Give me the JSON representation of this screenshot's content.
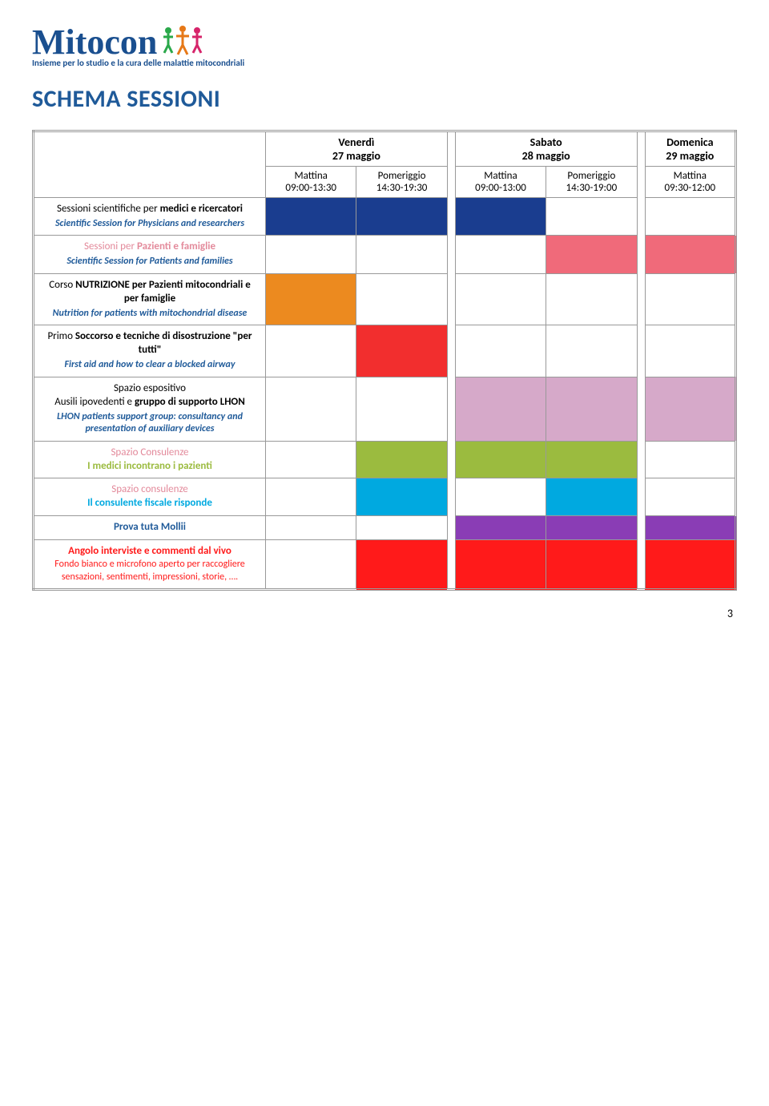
{
  "logo": {
    "brand": "Mitocon",
    "tagline": "Insieme per lo studio e la cura delle malattie mitocondriali"
  },
  "title": "SCHEMA SESSIONI",
  "days": {
    "d1": "Venerdì\n27 maggio",
    "d2": "Sabato\n28 maggio",
    "d3": "Domenica\n29 maggio"
  },
  "time_headers": {
    "d1m": "Mattina\n09:00-13:30",
    "d1p": "Pomeriggio\n14:30-19:30",
    "d2m": "Mattina\n09:00-13:00",
    "d2p": "Pomeriggio\n14:30-19:00",
    "d3m": "Mattina\n09:30-12:00"
  },
  "rows": [
    {
      "label_it_pre": "Sessioni scientifiche per ",
      "label_it_strong": "medici e ricercatori",
      "label_en": "Scientific Session for Physicians and researchers",
      "label_en_color": "#1f5a99",
      "cells": [
        "#1a3d8f",
        "#1a3d8f",
        "#1a3d8f",
        "",
        ""
      ]
    },
    {
      "label_it_pre": "Sessioni per ",
      "label_it_strong": "Pazienti e famiglie",
      "label_it_color": "#e38a9b",
      "label_en": "Scientific Session for Patients and families",
      "label_en_color": "#1f5a99",
      "cells": [
        "",
        "",
        "",
        "#f06a7a",
        "#f06a7a"
      ]
    },
    {
      "label_it_pre": "Corso ",
      "label_it_strong": "NUTRIZIONE per Pazienti mitocondriali e per famiglie",
      "label_en": "Nutrition for patients with mitochondrial disease",
      "label_en_color": "#1f5a99",
      "cells": [
        "#ec8a1f",
        "",
        "",
        "",
        ""
      ]
    },
    {
      "label_it_pre": "Primo ",
      "label_it_strong": "Soccorso e tecniche di disostruzione \"per tutti\"",
      "label_en": "First aid and how to clear a blocked airway",
      "label_en_color": "#1f5a99",
      "cells": [
        "",
        "#f22e2e",
        "",
        "",
        ""
      ]
    },
    {
      "label_it_pre": "Spazio espositivo\n",
      "label_it_pre2": "Ausili ipovedenti e ",
      "label_it_strong": "gruppo di supporto LHON",
      "label_en": "LHON patients support group: consultancy and presentation of auxiliary devices",
      "label_en_color": "#1f5a99",
      "cells": [
        "",
        "",
        "#d6a9c9",
        "#d6a9c9",
        "#d6a9c9"
      ]
    },
    {
      "label_it_pre_colored": "Spazio Consulenze",
      "label_it_pre_color": "#e38a9b",
      "label_it_strong": "I medici incontrano i pazienti",
      "label_it_color": "#9bbb3f",
      "cells": [
        "",
        "#9bbb3f",
        "#9bbb3f",
        "#9bbb3f",
        ""
      ]
    },
    {
      "label_it_pre_colored": "Spazio consulenze",
      "label_it_pre_color": "#e38a9b",
      "label_it_strong": "Il consulente fiscale risponde",
      "label_it_color": "#00a9e0",
      "cells": [
        "",
        "#00a9e0",
        "",
        "#00a9e0",
        ""
      ]
    },
    {
      "label_it_strong": "Prova tuta Mollii",
      "label_it_color": "#1f5a99",
      "cells": [
        "",
        "",
        "#8a3db5",
        "#8a3db5",
        "#8a3db5"
      ]
    },
    {
      "label_it_strong": "Angolo interviste e commenti dal vivo",
      "label_it_color": "#ff1a1a",
      "label_post": "Fondo bianco e microfono aperto per raccogliere sensazioni, sentimenti, impressioni, storie, ….",
      "label_post_color": "#ff1a1a",
      "cells": [
        "",
        "#ff1a1a",
        "#ff1a1a",
        "#ff1a1a",
        "#ff1a1a"
      ]
    }
  ],
  "page_number": "3"
}
